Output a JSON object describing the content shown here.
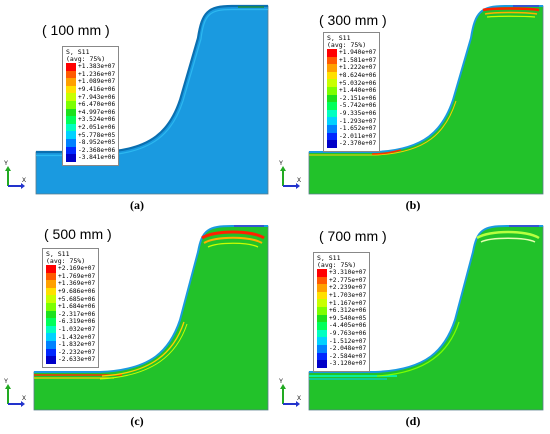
{
  "panels": [
    {
      "title": "( 100 mm )",
      "legend_header": [
        "S, S11",
        "(avg: 75%)"
      ],
      "legend_values": [
        "+1.383e+07",
        "+1.236e+07",
        "+1.089e+07",
        "+9.416e+06",
        "+7.943e+06",
        "+6.470e+06",
        "+4.997e+06",
        "+3.524e+06",
        "+2.051e+06",
        "+5.778e+05",
        "-8.952e+05",
        "-2.368e+06",
        "-3.841e+06"
      ],
      "body_color": "#1a9ae0",
      "caption": "(a)"
    },
    {
      "title": "( 300 mm )",
      "legend_header": [
        "S, S11",
        "(avg: 75%)"
      ],
      "legend_values": [
        "+1.940e+07",
        "+1.581e+07",
        "+1.222e+07",
        "+8.624e+06",
        "+5.032e+06",
        "+1.440e+06",
        "-2.151e+06",
        "-5.742e+06",
        "-9.335e+06",
        "-1.293e+07",
        "-1.652e+07",
        "-2.011e+07",
        "-2.370e+07"
      ],
      "body_color": "#22c22a",
      "caption": "(b)"
    },
    {
      "title": "( 500 mm )",
      "legend_header": [
        "S, S11",
        "(avg: 75%)"
      ],
      "legend_values": [
        "+2.169e+07",
        "+1.769e+07",
        "+1.369e+07",
        "+9.686e+06",
        "+5.685e+06",
        "+1.684e+06",
        "-2.317e+06",
        "-6.319e+06",
        "-1.032e+07",
        "-1.432e+07",
        "-1.832e+07",
        "-2.232e+07",
        "-2.633e+07"
      ],
      "body_color": "#22c22a",
      "caption": "(c)"
    },
    {
      "title": "( 700 mm )",
      "legend_header": [
        "S, S11",
        "(avg: 75%)"
      ],
      "legend_values": [
        "+3.310e+07",
        "+2.775e+07",
        "+2.239e+07",
        "+1.703e+07",
        "+1.167e+07",
        "+6.312e+06",
        "+9.540e+05",
        "-4.405e+06",
        "-9.763e+06",
        "-1.512e+07",
        "-2.048e+07",
        "-2.584e+07",
        "-3.120e+07"
      ],
      "body_color": "#22c22a",
      "caption": "(d)"
    }
  ],
  "contour_colors": [
    "#ff0000",
    "#ff5a00",
    "#ffa000",
    "#ffe000",
    "#c8ff00",
    "#7cff00",
    "#1ce11c",
    "#00ff5a",
    "#00ffc0",
    "#00d2ff",
    "#0082ff",
    "#0028ff",
    "#0000c8"
  ],
  "axis_labels": {
    "y": "Y",
    "x": "X"
  }
}
